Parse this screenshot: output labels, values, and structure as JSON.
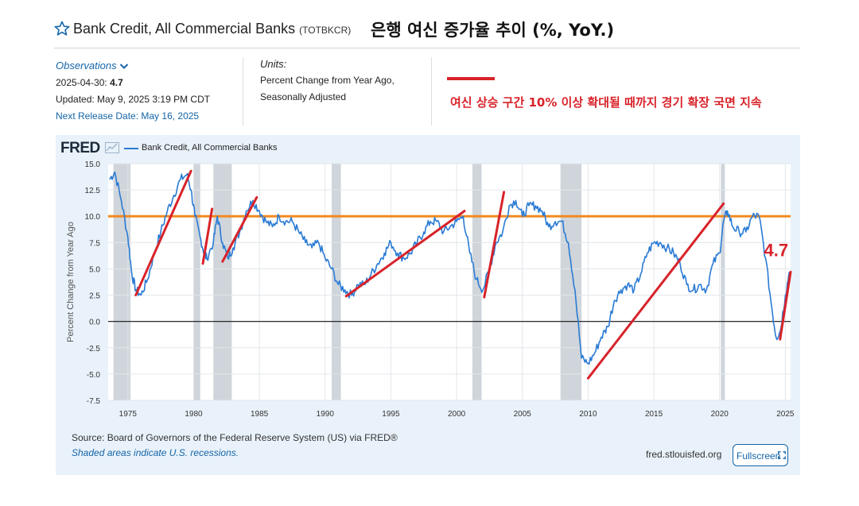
{
  "header": {
    "title": "Bank Credit, All Commercial Banks",
    "series_code": "(TOTBKCR)",
    "korean_title": "은행 여신 증가율 추이 (%, YoY.)"
  },
  "observations": {
    "label": "Observations",
    "date": "2025-04-30:",
    "value": "4.7",
    "updated": "Updated: May 9, 2025 3:19 PM CDT",
    "next_release": "Next Release Date: May 16, 2025"
  },
  "units": {
    "label": "Units:",
    "line1": "Percent Change from Year Ago,",
    "line2": "Seasonally Adjusted"
  },
  "annotation": {
    "korean_note": "여신 상승 구간 10% 이상 확대될 때까지 경기 확장 국면 지속",
    "latest_value_label": "4.7"
  },
  "chart_footer": {
    "logo": "FRED",
    "source": "Source: Board of Governors of the Federal Reserve System (US) via FRED®",
    "recession_note": "Shaded areas indicate U.S. recessions.",
    "site": "fred.stlouisfed.org",
    "fullscreen_label": "Fullscreen"
  },
  "colors": {
    "series": "#2a7bd4",
    "threshold": "#f28a21",
    "trend": "#d8232a",
    "recession": "#cfd5db",
    "background": "#e9f2fa",
    "link": "#1565a8"
  },
  "chart_data": {
    "type": "line",
    "title": "Bank Credit, All Commercial Banks",
    "ylabel": "Percent Change from Year Ago",
    "xlim": [
      1973.5,
      2025.4
    ],
    "ylim": [
      -7.5,
      15.0
    ],
    "yticks": [
      15.0,
      12.5,
      10.0,
      7.5,
      5.0,
      2.5,
      0.0,
      -2.5,
      -5.0,
      -7.5
    ],
    "ytick_labels": [
      "15.0",
      "12.5",
      "10.0",
      "7.5",
      "5.0",
      "2.5",
      "0.0",
      "-2.5",
      "-5.0",
      "-7.5"
    ],
    "xticks": [
      1975,
      1980,
      1985,
      1990,
      1995,
      2000,
      2005,
      2010,
      2015,
      2020,
      2025
    ],
    "grid": true,
    "legend": "top-left",
    "recessions": [
      [
        1973.9,
        1975.2
      ],
      [
        1980.0,
        1980.5
      ],
      [
        1981.5,
        1982.9
      ],
      [
        1990.5,
        1991.2
      ],
      [
        2001.2,
        2001.9
      ],
      [
        2007.9,
        2009.5
      ],
      [
        2020.1,
        2020.4
      ]
    ],
    "series": [
      {
        "name": "Bank Credit, All Commercial Banks",
        "x": [
          1973.6,
          1974.0,
          1974.5,
          1975.0,
          1975.3,
          1975.6,
          1976.0,
          1976.5,
          1977.0,
          1977.5,
          1978.0,
          1978.5,
          1979.0,
          1979.5,
          1979.8,
          1980.1,
          1980.5,
          1980.8,
          1981.0,
          1981.5,
          1981.8,
          1982.2,
          1982.6,
          1983.0,
          1983.5,
          1984.0,
          1984.5,
          1985.0,
          1985.5,
          1986.0,
          1986.5,
          1987.0,
          1987.5,
          1988.0,
          1988.5,
          1989.0,
          1989.5,
          1990.0,
          1990.5,
          1991.0,
          1991.5,
          1992.0,
          1992.5,
          1993.0,
          1993.5,
          1994.0,
          1994.5,
          1995.0,
          1995.5,
          1996.0,
          1996.5,
          1997.0,
          1997.5,
          1998.0,
          1998.5,
          1999.0,
          1999.5,
          2000.0,
          2000.5,
          2001.0,
          2001.5,
          2002.0,
          2002.5,
          2003.0,
          2003.5,
          2004.0,
          2004.5,
          2005.0,
          2005.5,
          2006.0,
          2006.5,
          2007.0,
          2007.5,
          2008.0,
          2008.5,
          2009.0,
          2009.5,
          2010.0,
          2010.5,
          2011.0,
          2011.5,
          2012.0,
          2012.5,
          2013.0,
          2013.5,
          2014.0,
          2014.5,
          2015.0,
          2015.5,
          2016.0,
          2016.5,
          2017.0,
          2017.5,
          2018.0,
          2018.5,
          2019.0,
          2019.5,
          2020.0,
          2020.3,
          2020.6,
          2021.0,
          2021.5,
          2022.0,
          2022.5,
          2023.0,
          2023.5,
          2024.0,
          2024.3,
          2024.6,
          2025.0,
          2025.3
        ],
        "values": [
          13.5,
          14.2,
          11.5,
          8.0,
          4.5,
          3.0,
          2.5,
          4.0,
          6.5,
          8.5,
          10.5,
          12.0,
          13.5,
          14.0,
          12.5,
          10.0,
          8.0,
          6.5,
          6.0,
          7.5,
          10.0,
          7.5,
          6.0,
          7.0,
          8.5,
          10.5,
          11.5,
          10.5,
          9.5,
          9.0,
          10.0,
          9.5,
          9.5,
          8.5,
          7.5,
          7.0,
          7.5,
          6.0,
          5.0,
          3.5,
          3.0,
          2.5,
          3.5,
          3.5,
          4.5,
          5.5,
          6.5,
          7.5,
          6.5,
          6.0,
          6.5,
          7.5,
          8.5,
          9.5,
          9.5,
          8.5,
          9.0,
          9.5,
          10.0,
          6.5,
          4.0,
          3.0,
          5.0,
          7.5,
          8.5,
          11.0,
          11.5,
          10.0,
          11.0,
          11.0,
          10.5,
          9.0,
          9.5,
          9.5,
          7.5,
          3.0,
          -3.5,
          -4.0,
          -3.0,
          -1.5,
          -0.5,
          2.0,
          3.0,
          3.5,
          3.0,
          4.5,
          6.5,
          7.5,
          7.5,
          7.0,
          6.5,
          5.5,
          3.5,
          3.0,
          3.5,
          3.0,
          5.5,
          6.5,
          9.5,
          10.5,
          9.0,
          8.5,
          8.5,
          10.0,
          10.0,
          6.0,
          1.0,
          -1.5,
          -1.0,
          2.5,
          4.7
        ]
      },
      {
        "name": "10% threshold",
        "x": [
          1973.5,
          2025.4
        ],
        "values": [
          10.0,
          10.0
        ]
      }
    ],
    "trend_lines": [
      {
        "x": [
          1975.6,
          1979.8
        ],
        "values": [
          2.5,
          14.3
        ]
      },
      {
        "x": [
          1980.7,
          1981.4
        ],
        "values": [
          5.5,
          10.7
        ]
      },
      {
        "x": [
          1982.2,
          1984.8
        ],
        "values": [
          5.7,
          11.8
        ]
      },
      {
        "x": [
          1991.6,
          2000.6
        ],
        "values": [
          2.4,
          10.5
        ]
      },
      {
        "x": [
          2002.1,
          2003.6
        ],
        "values": [
          2.3,
          12.3
        ]
      },
      {
        "x": [
          2010.0,
          2020.3
        ],
        "values": [
          -5.4,
          11.2
        ]
      },
      {
        "x": [
          2024.6,
          2025.4
        ],
        "values": [
          -1.7,
          4.7
        ]
      }
    ]
  }
}
